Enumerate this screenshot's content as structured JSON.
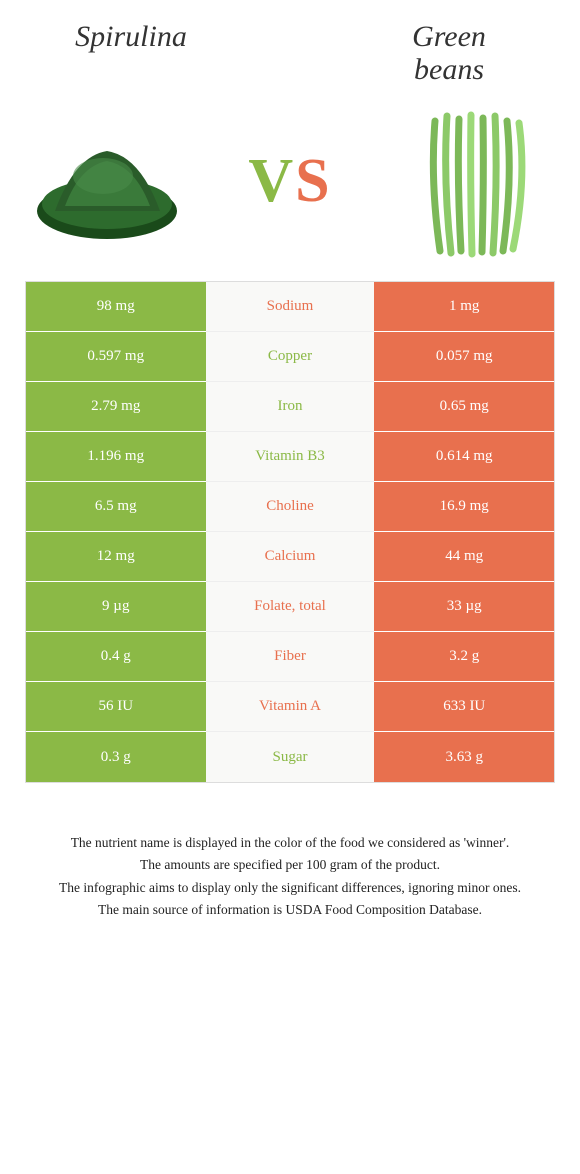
{
  "foods": {
    "left": {
      "name": "Spirulina",
      "color": "#8bb946"
    },
    "right": {
      "name": "Green\nbeans",
      "color": "#e8704e"
    }
  },
  "vs_label": {
    "v": "V",
    "s": "S"
  },
  "rows": [
    {
      "left": "98 mg",
      "label": "Sodium",
      "right": "1 mg",
      "winner": "orange"
    },
    {
      "left": "0.597 mg",
      "label": "Copper",
      "right": "0.057 mg",
      "winner": "green"
    },
    {
      "left": "2.79 mg",
      "label": "Iron",
      "right": "0.65 mg",
      "winner": "green"
    },
    {
      "left": "1.196 mg",
      "label": "Vitamin B3",
      "right": "0.614 mg",
      "winner": "green"
    },
    {
      "left": "6.5 mg",
      "label": "Choline",
      "right": "16.9 mg",
      "winner": "orange"
    },
    {
      "left": "12 mg",
      "label": "Calcium",
      "right": "44 mg",
      "winner": "orange"
    },
    {
      "left": "9 µg",
      "label": "Folate, total",
      "right": "33 µg",
      "winner": "orange"
    },
    {
      "left": "0.4 g",
      "label": "Fiber",
      "right": "3.2 g",
      "winner": "orange"
    },
    {
      "left": "56 IU",
      "label": "Vitamin A",
      "right": "633 IU",
      "winner": "orange"
    },
    {
      "left": "0.3 g",
      "label": "Sugar",
      "right": "3.63 g",
      "winner": "green"
    }
  ],
  "footer": {
    "line1": "The nutrient name is displayed in the color of the food we considered as 'winner'.",
    "line2": "The amounts are specified per 100 gram of the product.",
    "line3": "The infographic aims to display only the significant differences, ignoring minor ones.",
    "line4": "The main source of information is USDA Food Composition Database."
  },
  "colors": {
    "green": "#8bb946",
    "orange": "#e8704e",
    "bg_mid": "#f9f9f7"
  }
}
